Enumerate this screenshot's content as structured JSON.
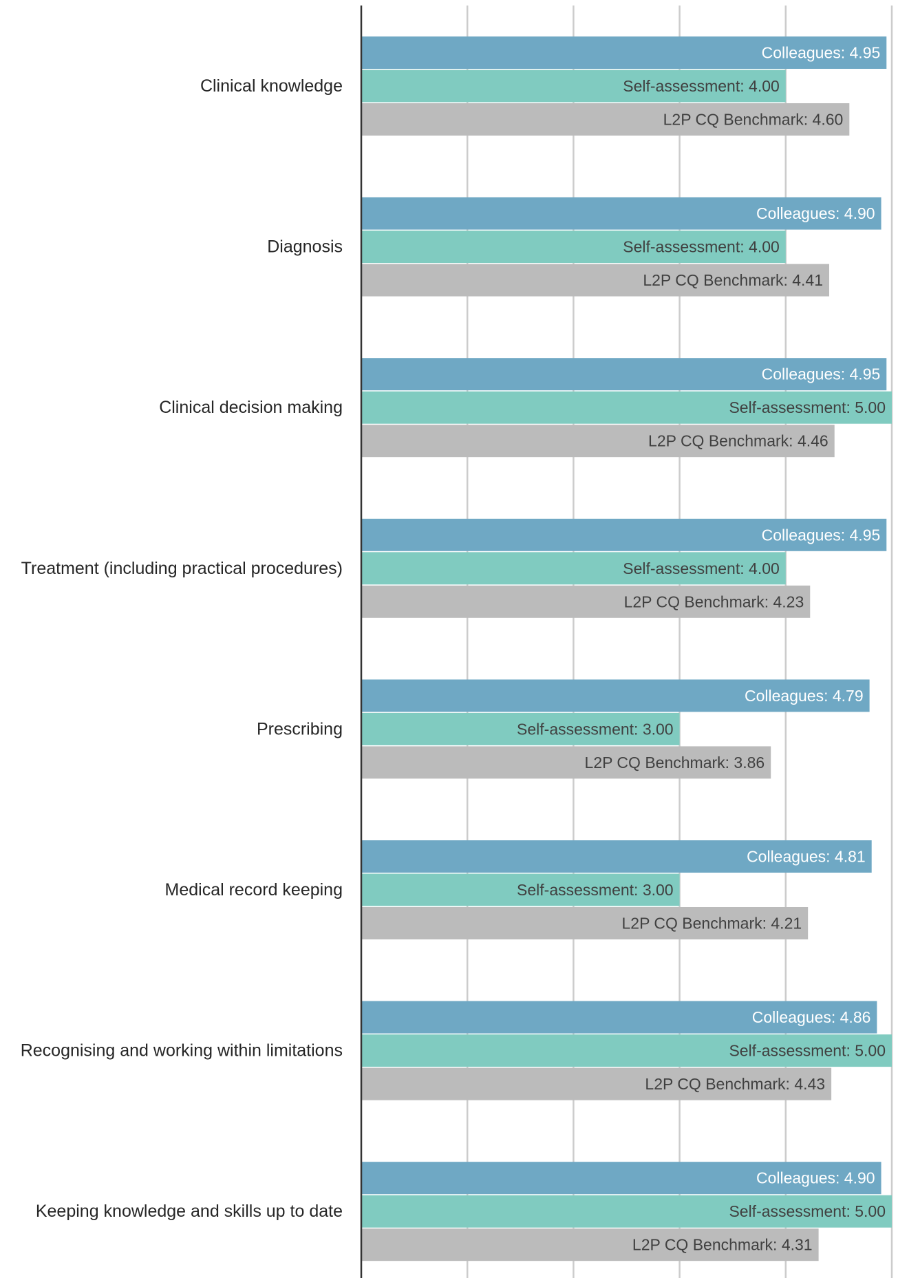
{
  "chart_data": {
    "type": "bar",
    "orientation": "horizontal",
    "categories": [
      "Clinical knowledge",
      "Diagnosis",
      "Clinical decision making",
      "Treatment (including practical procedures)",
      "Prescribing",
      "Medical record keeping",
      "Recognising and working within limitations",
      "Keeping knowledge and skills up to date"
    ],
    "series": [
      {
        "name": "Colleagues",
        "color": "#6fa8c4",
        "label_color": "#ffffff",
        "values": [
          4.95,
          4.9,
          4.95,
          4.95,
          4.79,
          4.81,
          4.86,
          4.9
        ]
      },
      {
        "name": "Self-assessment",
        "color": "#80cbc0",
        "label_color": "#404040",
        "values": [
          4.0,
          4.0,
          5.0,
          4.0,
          3.0,
          3.0,
          5.0,
          5.0
        ]
      },
      {
        "name": "L2P CQ Benchmark",
        "color": "#bbbbbb",
        "label_color": "#404040",
        "values": [
          4.6,
          4.41,
          4.46,
          4.23,
          3.86,
          4.21,
          4.43,
          4.31
        ]
      }
    ],
    "xlim": [
      0,
      5
    ],
    "grid": true,
    "gridline_color": "#cccccc",
    "axis_color": "#333333",
    "legend": "none",
    "title": "",
    "xlabel": "",
    "ylabel": ""
  }
}
